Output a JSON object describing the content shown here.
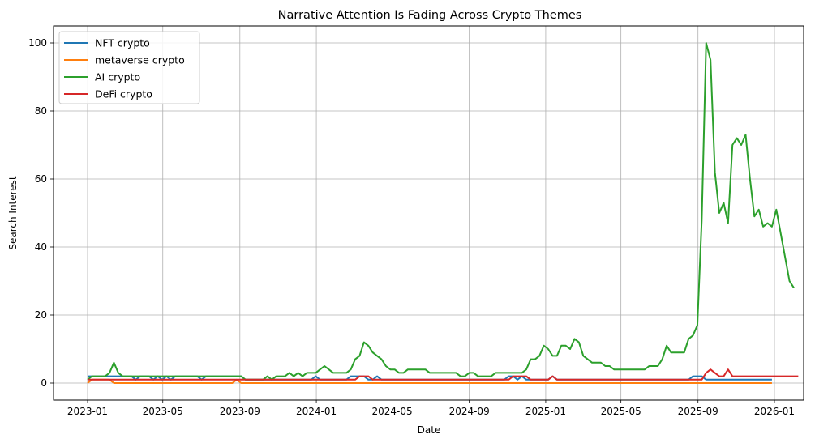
{
  "chart_data": {
    "type": "line",
    "title": "Narrative Attention Is Fading Across Crypto Themes",
    "xlabel": "Date",
    "ylabel": "Search Interest",
    "ylim": [
      -3,
      105
    ],
    "yticks": [
      0,
      20,
      40,
      60,
      80,
      100
    ],
    "xticks": [
      "2023-01",
      "2023-05",
      "2023-09",
      "2024-01",
      "2024-05",
      "2024-09",
      "2025-01",
      "2025-05",
      "2025-09",
      "2026-01"
    ],
    "grid": true,
    "legend_position": "upper left",
    "x_start": "2023-01-01",
    "x_frequency": "weekly",
    "series": [
      {
        "name": "NFT crypto",
        "color": "#1f77b4",
        "values": [
          2,
          2,
          2,
          2,
          2,
          2,
          2,
          2,
          2,
          2,
          2,
          1,
          2,
          2,
          2,
          1,
          2,
          1,
          2,
          1,
          2,
          2,
          2,
          2,
          2,
          2,
          1,
          2,
          2,
          2,
          2,
          2,
          2,
          2,
          2,
          2,
          1,
          1,
          1,
          1,
          1,
          1,
          1,
          1,
          1,
          1,
          1,
          1,
          1,
          1,
          1,
          1,
          2,
          1,
          1,
          1,
          1,
          1,
          1,
          1,
          2,
          2,
          2,
          2,
          1,
          1,
          2,
          1,
          1,
          1,
          1,
          1,
          1,
          1,
          1,
          1,
          1,
          1,
          1,
          1,
          1,
          1,
          1,
          1,
          1,
          1,
          1,
          1,
          1,
          1,
          1,
          1,
          1,
          1,
          1,
          1,
          2,
          2,
          1,
          2,
          1,
          1,
          1,
          1,
          1,
          1,
          2,
          1,
          1,
          1,
          1,
          1,
          1,
          1,
          1,
          1,
          1,
          1,
          1,
          1,
          1,
          1,
          1,
          1,
          1,
          1,
          1,
          1,
          1,
          1,
          1,
          1,
          1,
          1,
          1,
          1,
          1,
          1,
          2,
          2,
          2,
          1,
          1,
          1,
          1,
          1,
          1,
          1,
          1,
          1,
          1,
          1,
          1,
          1,
          1,
          1,
          1
        ]
      },
      {
        "name": "metaverse crypto",
        "color": "#ff7f0e",
        "values": [
          0,
          1,
          1,
          1,
          1,
          1,
          0,
          0,
          0,
          0,
          0,
          0,
          0,
          0,
          0,
          0,
          0,
          0,
          0,
          0,
          0,
          0,
          0,
          0,
          0,
          0,
          0,
          0,
          0,
          0,
          0,
          0,
          0,
          0,
          1,
          0,
          0,
          0,
          0,
          0,
          0,
          0,
          0,
          0,
          0,
          0,
          0,
          0,
          0,
          0,
          0,
          0,
          0,
          0,
          0,
          0,
          0,
          0,
          0,
          0,
          0,
          0,
          0,
          0,
          0,
          0,
          0,
          0,
          0,
          0,
          0,
          0,
          0,
          0,
          0,
          0,
          0,
          0,
          0,
          0,
          0,
          0,
          0,
          0,
          0,
          0,
          0,
          0,
          0,
          0,
          0,
          0,
          0,
          0,
          0,
          0,
          0,
          0,
          0,
          0,
          0,
          0,
          0,
          0,
          0,
          0,
          0,
          0,
          0,
          0,
          0,
          0,
          0,
          0,
          0,
          0,
          0,
          0,
          0,
          0,
          0,
          0,
          0,
          0,
          0,
          0,
          0,
          0,
          0,
          0,
          0,
          0,
          0,
          0,
          0,
          0,
          0,
          0,
          0,
          0,
          0,
          0,
          0,
          0,
          0,
          0,
          0,
          0,
          0,
          0,
          0,
          0,
          0,
          0,
          0,
          0,
          0
        ]
      },
      {
        "name": "AI crypto",
        "color": "#2ca02c",
        "values": [
          1,
          2,
          2,
          2,
          2,
          3,
          6,
          3,
          2,
          2,
          2,
          2,
          2,
          2,
          2,
          2,
          2,
          2,
          2,
          2,
          2,
          2,
          2,
          2,
          2,
          2,
          2,
          2,
          2,
          2,
          2,
          2,
          2,
          2,
          2,
          2,
          1,
          1,
          1,
          1,
          1,
          2,
          1,
          2,
          2,
          2,
          3,
          2,
          3,
          2,
          3,
          3,
          3,
          4,
          5,
          4,
          3,
          3,
          3,
          3,
          4,
          7,
          8,
          12,
          11,
          9,
          8,
          7,
          5,
          4,
          4,
          3,
          3,
          4,
          4,
          4,
          4,
          4,
          3,
          3,
          3,
          3,
          3,
          3,
          3,
          2,
          2,
          3,
          3,
          2,
          2,
          2,
          2,
          3,
          3,
          3,
          3,
          3,
          3,
          3,
          4,
          7,
          7,
          8,
          11,
          10,
          8,
          8,
          11,
          11,
          10,
          13,
          12,
          8,
          7,
          6,
          6,
          6,
          5,
          5,
          4,
          4,
          4,
          4,
          4,
          4,
          4,
          4,
          5,
          5,
          5,
          7,
          11,
          9,
          9,
          9,
          9,
          13,
          14,
          17,
          48,
          100,
          95,
          62,
          50,
          53,
          47,
          70,
          72,
          70,
          73,
          60,
          49,
          51,
          46,
          47,
          46,
          51,
          44,
          37,
          30,
          28
        ]
      },
      {
        "name": "DeFi crypto",
        "color": "#d62728",
        "values": [
          1,
          1,
          1,
          1,
          1,
          1,
          1,
          1,
          1,
          1,
          1,
          1,
          1,
          1,
          1,
          1,
          1,
          1,
          1,
          1,
          1,
          1,
          1,
          1,
          1,
          1,
          1,
          1,
          1,
          1,
          1,
          1,
          1,
          1,
          1,
          1,
          1,
          1,
          1,
          1,
          1,
          1,
          1,
          1,
          1,
          1,
          1,
          1,
          1,
          1,
          1,
          1,
          1,
          1,
          1,
          1,
          1,
          1,
          1,
          1,
          1,
          1,
          2,
          2,
          2,
          1,
          1,
          1,
          1,
          1,
          1,
          1,
          1,
          1,
          1,
          1,
          1,
          1,
          1,
          1,
          1,
          1,
          1,
          1,
          1,
          1,
          1,
          1,
          1,
          1,
          1,
          1,
          1,
          1,
          1,
          1,
          1,
          2,
          2,
          2,
          2,
          1,
          1,
          1,
          1,
          1,
          2,
          1,
          1,
          1,
          1,
          1,
          1,
          1,
          1,
          1,
          1,
          1,
          1,
          1,
          1,
          1,
          1,
          1,
          1,
          1,
          1,
          1,
          1,
          1,
          1,
          1,
          1,
          1,
          1,
          1,
          1,
          1,
          1,
          1,
          1,
          3,
          4,
          3,
          2,
          2,
          4,
          2,
          2,
          2,
          2,
          2,
          2,
          2,
          2,
          2,
          2,
          2,
          2,
          2,
          2,
          2,
          2
        ]
      }
    ]
  }
}
